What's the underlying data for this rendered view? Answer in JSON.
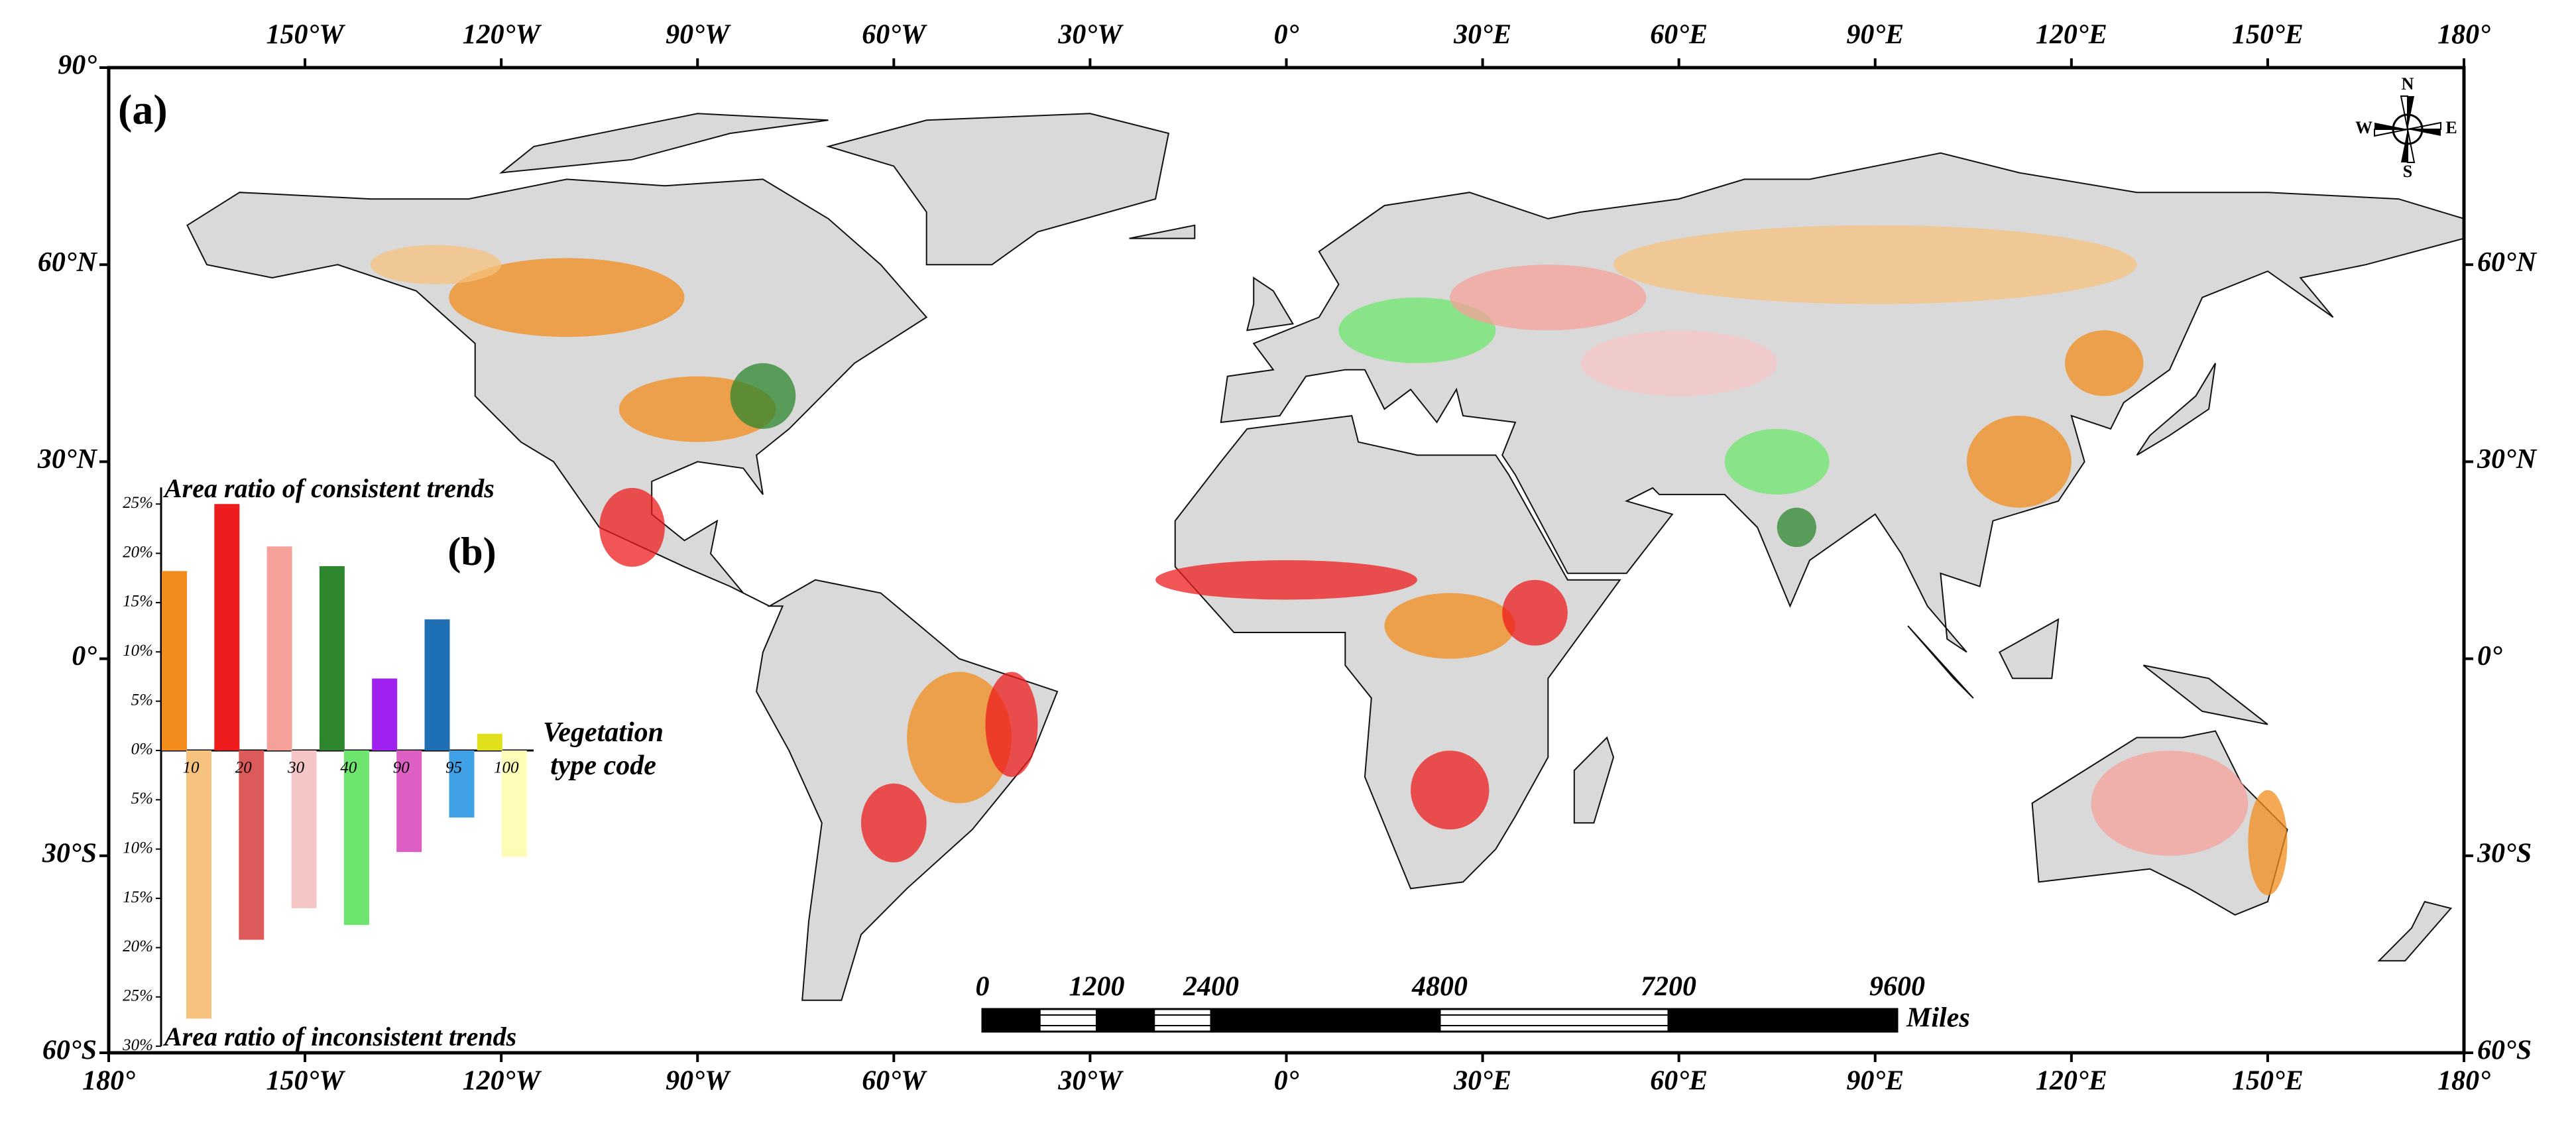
{
  "map": {
    "panel_label": "(a)",
    "lon_ticks": [
      {
        "value": -180,
        "label": "180°"
      },
      {
        "value": -150,
        "label": "150°W"
      },
      {
        "value": -120,
        "label": "120°W"
      },
      {
        "value": -90,
        "label": "90°W"
      },
      {
        "value": -60,
        "label": "60°W"
      },
      {
        "value": -30,
        "label": "30°W"
      },
      {
        "value": 0,
        "label": "0°"
      },
      {
        "value": 30,
        "label": "30°E"
      },
      {
        "value": 60,
        "label": "60°E"
      },
      {
        "value": 90,
        "label": "90°E"
      },
      {
        "value": 120,
        "label": "120°E"
      },
      {
        "value": 150,
        "label": "150°E"
      },
      {
        "value": 180,
        "label": "180°"
      }
    ],
    "lat_ticks": [
      {
        "value": 90,
        "label": "90°"
      },
      {
        "value": 60,
        "label": "60°N"
      },
      {
        "value": 30,
        "label": "30°N"
      },
      {
        "value": 0,
        "label": "0°"
      },
      {
        "value": -30,
        "label": "30°S"
      },
      {
        "value": -60,
        "label": "60°S"
      }
    ],
    "xlim": [
      -180,
      180
    ],
    "ylim": [
      -60,
      90
    ],
    "compass": [
      "N",
      "E",
      "S",
      "W"
    ],
    "scale_bar": {
      "unit": "Miles",
      "ticks": [
        0,
        1200,
        2400,
        4800,
        7200,
        9600
      ]
    }
  },
  "chart_data": {
    "type": "bar",
    "title": "(b)",
    "x_label": "Vegetation type code",
    "categories": [
      "10",
      "20",
      "30",
      "40",
      "90",
      "95",
      "100"
    ],
    "series": [
      {
        "label": "Area ratio of consistent trends",
        "colors": [
          "#f28c1c",
          "#ee1c1c",
          "#f6a09a",
          "#2e862e",
          "#a020f0",
          "#1f6fb5",
          "#e0e01c"
        ],
        "values": [
          18.2,
          25,
          20.7,
          18.7,
          7.3,
          13.3,
          1.7
        ]
      },
      {
        "label": "Area ratio of inconsistent trends",
        "axis": "y2",
        "colors": [
          "#f7c27e",
          "#dc5a5a",
          "#f5c6c6",
          "#6ee66e",
          "#dd5fc4",
          "#3fa0e6",
          "#fdfdb8"
        ],
        "values": [
          27.2,
          19.2,
          16,
          17.7,
          10.3,
          6.8,
          10.8
        ]
      }
    ],
    "ylim": [
      0,
      25
    ],
    "yticks": [
      {
        "value": 0,
        "label": "0%"
      },
      {
        "value": 5,
        "label": "5%"
      },
      {
        "value": 10,
        "label": "10%"
      },
      {
        "value": 15,
        "label": "15%"
      },
      {
        "value": 20,
        "label": "20%"
      },
      {
        "value": 25,
        "label": "25%"
      }
    ],
    "y2lim": [
      0,
      30
    ],
    "y2ticks": [
      {
        "value": 5,
        "label": "5%"
      },
      {
        "value": 10,
        "label": "10%"
      },
      {
        "value": 15,
        "label": "15%"
      },
      {
        "value": 20,
        "label": "20%"
      },
      {
        "value": 25,
        "label": "25%"
      },
      {
        "value": 30,
        "label": "30%"
      }
    ]
  }
}
